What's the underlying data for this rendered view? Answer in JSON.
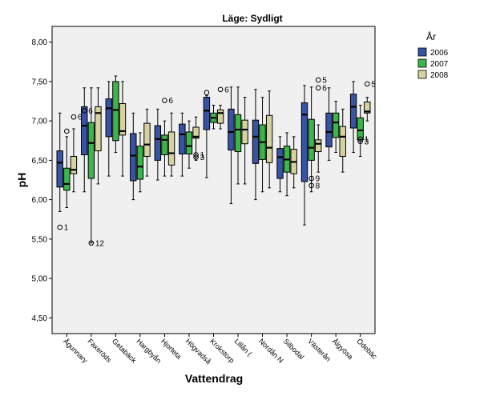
{
  "chart_data": {
    "type": "boxplot",
    "title": "Läge: Sydligt",
    "xlabel": "Vattendrag",
    "ylabel": "pH",
    "ylim": [
      4.3,
      8.2
    ],
    "yticks": [
      "4,50",
      "5,00",
      "5,50",
      "6,00",
      "6,50",
      "7,00",
      "7,50",
      "8,00"
    ],
    "ytick_values": [
      4.5,
      5.0,
      5.5,
      6.0,
      6.5,
      7.0,
      7.5,
      8.0
    ],
    "grid": false,
    "legend_position": "right",
    "legend_title": "År",
    "series": [
      {
        "name": "2006",
        "color": "#3953a4"
      },
      {
        "name": "2007",
        "color": "#3cb64a"
      },
      {
        "name": "2008",
        "color": "#d6d2a0"
      }
    ],
    "categories": [
      "Ågunnary",
      "Faxeröds",
      "Getabäck",
      "Hargbyån",
      "Hjorteta",
      "Högvadså",
      "Krokstorp",
      "Lillån (",
      "Nordån N",
      "Silbodal",
      "Västerån",
      "Ålgyösa",
      "Ödebäc"
    ],
    "boxes": [
      [
        {
          "min": 5.85,
          "q1": 6.16,
          "median": 6.47,
          "q3": 6.62,
          "max": 7.1,
          "outliers": [
            {
              "v": 5.65,
              "label": "1"
            }
          ]
        },
        {
          "min": 5.9,
          "q1": 6.12,
          "median": 6.2,
          "q3": 6.4,
          "max": 6.8,
          "outliers": [
            {
              "v": 6.87,
              "label": ""
            }
          ]
        },
        {
          "min": 6.1,
          "q1": 6.33,
          "median": 6.38,
          "q3": 6.55,
          "max": 6.9,
          "outliers": [
            {
              "v": 7.05,
              "label": "6"
            }
          ]
        }
      ],
      [
        {
          "min": 6.1,
          "q1": 6.57,
          "median": 6.94,
          "q3": 7.18,
          "max": 7.42,
          "outliers": [
            {
              "v": 7.13,
              "label": "6"
            }
          ]
        },
        {
          "min": 5.45,
          "q1": 6.27,
          "median": 6.72,
          "q3": 6.98,
          "max": 7.42,
          "outliers": [
            {
              "v": 5.45,
              "label": "12"
            }
          ]
        },
        {
          "min": 6.2,
          "q1": 6.62,
          "median": 7.1,
          "q3": 7.18,
          "max": 7.42,
          "outliers": []
        }
      ],
      [
        {
          "min": 6.3,
          "q1": 6.8,
          "median": 7.16,
          "q3": 7.28,
          "max": 7.5,
          "outliers": []
        },
        {
          "min": 6.6,
          "q1": 6.75,
          "median": 7.14,
          "q3": 7.5,
          "max": 7.57,
          "outliers": []
        },
        {
          "min": 6.3,
          "q1": 6.82,
          "median": 6.87,
          "q3": 7.22,
          "max": 7.5,
          "outliers": []
        }
      ],
      [
        {
          "min": 6.0,
          "q1": 6.24,
          "median": 6.56,
          "q3": 6.84,
          "max": 7.1,
          "outliers": []
        },
        {
          "min": 6.1,
          "q1": 6.26,
          "median": 6.42,
          "q3": 6.68,
          "max": 6.85,
          "outliers": []
        },
        {
          "min": 6.3,
          "q1": 6.55,
          "median": 6.7,
          "q3": 6.97,
          "max": 7.15,
          "outliers": []
        }
      ],
      [
        {
          "min": 6.25,
          "q1": 6.5,
          "median": 6.77,
          "q3": 6.94,
          "max": 7.15,
          "outliers": []
        },
        {
          "min": 6.3,
          "q1": 6.57,
          "median": 6.76,
          "q3": 6.82,
          "max": 7.0,
          "outliers": [
            {
              "v": 7.26,
              "label": "6"
            }
          ]
        },
        {
          "min": 6.3,
          "q1": 6.44,
          "median": 6.59,
          "q3": 6.86,
          "max": 7.1,
          "outliers": []
        }
      ],
      [
        {
          "min": 6.3,
          "q1": 6.58,
          "median": 6.83,
          "q3": 6.96,
          "max": 7.1,
          "outliers": []
        },
        {
          "min": 6.4,
          "q1": 6.58,
          "median": 6.68,
          "q3": 6.86,
          "max": 7.0,
          "outliers": []
        },
        {
          "min": 6.5,
          "q1": 6.78,
          "median": 6.8,
          "q3": 6.92,
          "max": 7.05,
          "outliers": [
            {
              "v": 6.57,
              "label": "1"
            },
            {
              "v": 6.54,
              "label": "3"
            }
          ]
        }
      ],
      [
        {
          "min": 6.28,
          "q1": 6.89,
          "median": 7.13,
          "q3": 7.3,
          "max": 7.32,
          "outliers": [
            {
              "v": 7.36,
              "label": ""
            }
          ]
        },
        {
          "min": 6.9,
          "q1": 6.98,
          "median": 7.04,
          "q3": 7.1,
          "max": 7.2,
          "outliers": []
        },
        {
          "min": 6.9,
          "q1": 6.97,
          "median": 7.1,
          "q3": 7.14,
          "max": 7.2,
          "outliers": [
            {
              "v": 7.4,
              "label": "6"
            }
          ]
        }
      ],
      [
        {
          "min": 5.95,
          "q1": 6.63,
          "median": 6.86,
          "q3": 7.15,
          "max": 7.43,
          "outliers": []
        },
        {
          "min": 6.2,
          "q1": 6.61,
          "median": 6.89,
          "q3": 7.08,
          "max": 7.43,
          "outliers": []
        },
        {
          "min": 6.2,
          "q1": 6.71,
          "median": 6.89,
          "q3": 7.01,
          "max": 7.3,
          "outliers": []
        }
      ],
      [
        {
          "min": 6.0,
          "q1": 6.46,
          "median": 6.8,
          "q3": 7.01,
          "max": 7.4,
          "outliers": []
        },
        {
          "min": 6.1,
          "q1": 6.51,
          "median": 6.73,
          "q3": 6.95,
          "max": 7.3,
          "outliers": []
        },
        {
          "min": 6.15,
          "q1": 6.47,
          "median": 6.66,
          "q3": 7.07,
          "max": 7.38,
          "outliers": []
        }
      ],
      [
        {
          "min": 6.1,
          "q1": 6.27,
          "median": 6.54,
          "q3": 6.65,
          "max": 6.8,
          "outliers": []
        },
        {
          "min": 6.05,
          "q1": 6.35,
          "median": 6.51,
          "q3": 6.68,
          "max": 6.85,
          "outliers": []
        },
        {
          "min": 6.15,
          "q1": 6.33,
          "median": 6.48,
          "q3": 6.64,
          "max": 6.8,
          "outliers": []
        }
      ],
      [
        {
          "min": 5.68,
          "q1": 6.23,
          "median": 7.08,
          "q3": 7.23,
          "max": 7.45,
          "outliers": []
        },
        {
          "min": 6.1,
          "q1": 6.5,
          "median": 6.66,
          "q3": 7.02,
          "max": 7.43,
          "outliers": [
            {
              "v": 6.27,
              "label": "9"
            },
            {
              "v": 6.18,
              "label": "8"
            }
          ]
        },
        {
          "min": 6.35,
          "q1": 6.61,
          "median": 6.71,
          "q3": 6.76,
          "max": 6.95,
          "outliers": [
            {
              "v": 7.52,
              "label": "5"
            },
            {
              "v": 7.42,
              "label": "6"
            }
          ]
        }
      ],
      [
        {
          "min": 6.5,
          "q1": 6.67,
          "median": 6.86,
          "q3": 7.1,
          "max": 7.42,
          "outliers": []
        },
        {
          "min": 6.6,
          "q1": 6.79,
          "median": 6.98,
          "q3": 7.1,
          "max": 7.25,
          "outliers": []
        },
        {
          "min": 6.35,
          "q1": 6.55,
          "median": 6.8,
          "q3": 6.93,
          "max": 7.15,
          "outliers": []
        }
      ],
      [
        {
          "min": 6.6,
          "q1": 6.91,
          "median": 7.18,
          "q3": 7.34,
          "max": 7.5,
          "outliers": []
        },
        {
          "min": 6.55,
          "q1": 6.76,
          "median": 6.88,
          "q3": 7.04,
          "max": 7.2,
          "outliers": [
            {
              "v": 6.77,
              "label": "1"
            },
            {
              "v": 6.74,
              "label": "3"
            }
          ]
        },
        {
          "min": 7.0,
          "q1": 7.1,
          "median": 7.12,
          "q3": 7.24,
          "max": 7.3,
          "outliers": [
            {
              "v": 7.47,
              "label": "5"
            }
          ]
        }
      ]
    ]
  }
}
